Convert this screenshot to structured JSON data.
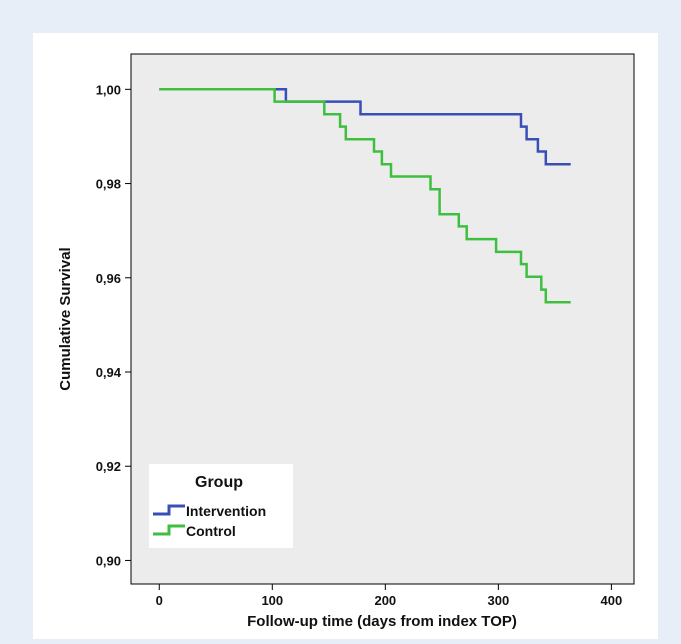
{
  "chart_data": {
    "type": "line",
    "subtype": "kaplan-meier step",
    "xlabel": "Follow-up time (days from index TOP)",
    "ylabel": "Cumulative Survival",
    "xlim": [
      -25,
      420
    ],
    "ylim": [
      0.895,
      1.0075
    ],
    "xticks": [
      0,
      100,
      200,
      300,
      400
    ],
    "xtick_labels": [
      "0",
      "100",
      "200",
      "300",
      "400"
    ],
    "yticks": [
      0.9,
      0.92,
      0.94,
      0.96,
      0.98,
      1.0
    ],
    "ytick_labels": [
      "0,90",
      "0,92",
      "0,94",
      "0,96",
      "0,98",
      "1,00"
    ],
    "grid": false,
    "background": "#ececec",
    "legend": {
      "title": "Group",
      "position": "bottom-left",
      "entries": [
        "Intervention",
        "Control"
      ]
    },
    "series": [
      {
        "name": "Intervention",
        "color": "#3a4fb5",
        "x": [
          0,
          112,
          178,
          315,
          320,
          325,
          335,
          342,
          364
        ],
        "y": [
          1.0,
          0.9974,
          0.9947,
          0.9947,
          0.9921,
          0.9894,
          0.9868,
          0.9841,
          0.9841
        ]
      },
      {
        "name": "Control",
        "color": "#3fbf3f",
        "x": [
          0,
          102,
          146,
          160,
          165,
          190,
          197,
          205,
          240,
          248,
          265,
          272,
          298,
          320,
          325,
          338,
          342,
          364
        ],
        "y": [
          1.0,
          0.9974,
          0.9947,
          0.9921,
          0.9894,
          0.9868,
          0.9841,
          0.9815,
          0.9788,
          0.9735,
          0.9709,
          0.9682,
          0.9655,
          0.9629,
          0.9602,
          0.9575,
          0.9548,
          0.9548
        ]
      }
    ]
  }
}
